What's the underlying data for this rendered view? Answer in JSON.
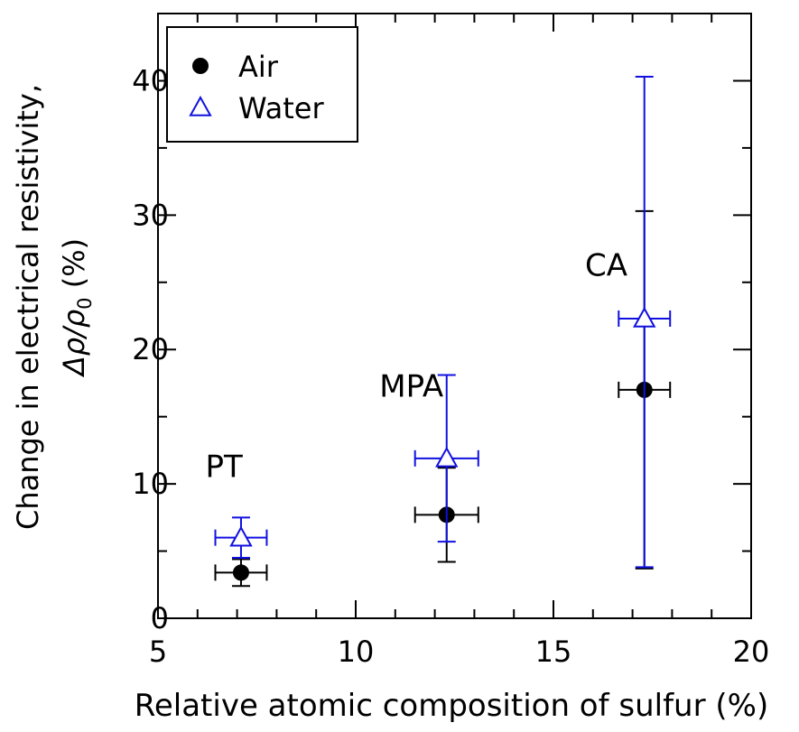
{
  "chart_data": {
    "type": "scatter",
    "title": "",
    "xlabel": "Relative atomic composition of sulfur (%)",
    "ylabel_line1": "Change in electrical resistivity,",
    "ylabel_line2": "Δρ/ρ",
    "ylabel_sub": "0",
    "ylabel_unit": " (%)",
    "xlim": [
      5,
      20
    ],
    "ylim": [
      0,
      45
    ],
    "x_ticks": [
      5,
      10,
      15,
      20
    ],
    "x_tick_labels": [
      "5",
      "10",
      "15",
      "20"
    ],
    "y_ticks": [
      0,
      10,
      20,
      30,
      40
    ],
    "y_tick_labels": [
      "0",
      "10",
      "20",
      "30",
      "40"
    ],
    "x_minor_step": 1,
    "y_minor_step": 5,
    "grid": false,
    "legend_position": "top-left",
    "series": [
      {
        "name": "Air",
        "color": "#000000",
        "marker": "filled-circle",
        "points": [
          {
            "x": 7.1,
            "y": 3.4,
            "xerr": 0.65,
            "yerr_low": 1.0,
            "yerr_high": 1.0
          },
          {
            "x": 12.3,
            "y": 7.7,
            "xerr": 0.8,
            "yerr_low": 3.5,
            "yerr_high": 3.5
          },
          {
            "x": 17.3,
            "y": 17.0,
            "xerr": 0.65,
            "yerr_low": 13.3,
            "yerr_high": 13.3
          }
        ]
      },
      {
        "name": "Water",
        "color": "#1010e0",
        "marker": "open-triangle",
        "points": [
          {
            "x": 7.1,
            "y": 6.0,
            "xerr": 0.65,
            "yerr_low": 1.5,
            "yerr_high": 1.5
          },
          {
            "x": 12.3,
            "y": 11.9,
            "xerr": 0.8,
            "yerr_low": 6.2,
            "yerr_high": 6.2
          },
          {
            "x": 17.3,
            "y": 22.3,
            "xerr": 0.65,
            "yerr_low": 18.5,
            "yerr_high": 18.0
          }
        ]
      }
    ],
    "annotations": [
      {
        "text": "PT",
        "x": 6.2,
        "y": 10.5
      },
      {
        "text": "MPA",
        "x": 10.6,
        "y": 16.5
      },
      {
        "text": "CA",
        "x": 15.8,
        "y": 25.5
      }
    ]
  }
}
